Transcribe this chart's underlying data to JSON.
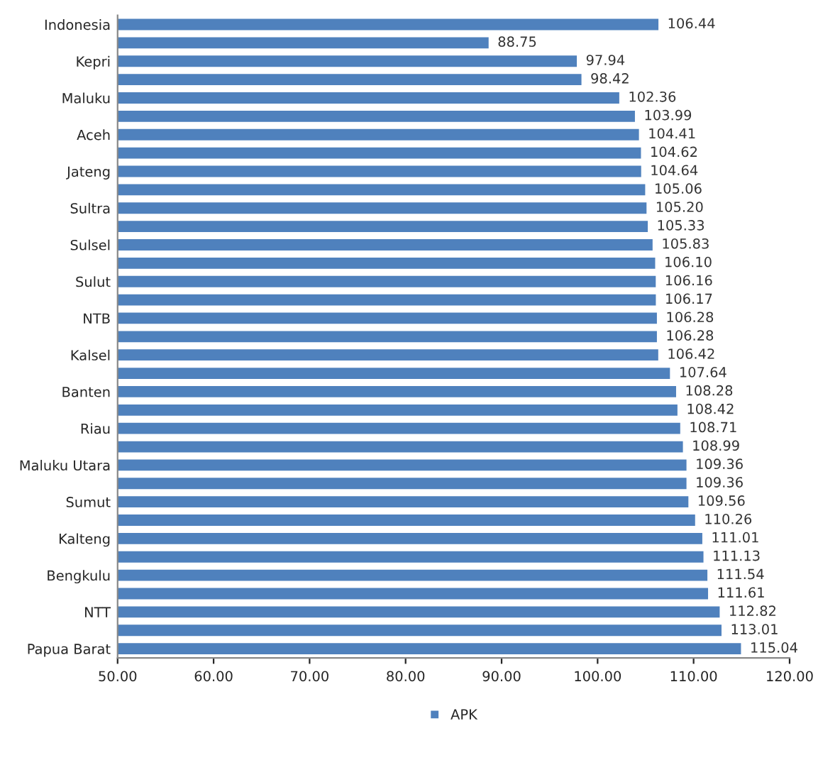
{
  "chart_data": {
    "type": "bar",
    "orientation": "horizontal",
    "categories": [
      "Indonesia",
      null,
      "Kepri",
      null,
      "Maluku",
      null,
      "Aceh",
      null,
      "Jateng",
      null,
      "Sultra",
      null,
      "Sulsel",
      null,
      "Sulut",
      null,
      "NTB",
      null,
      "Kalsel",
      null,
      "Banten",
      null,
      "Riau",
      null,
      "Maluku Utara",
      null,
      "Sumut",
      null,
      "Kalteng",
      null,
      "Bengkulu",
      null,
      "NTT",
      null,
      "Papua Barat"
    ],
    "series": [
      {
        "name": "APK",
        "color": "#4f81bd",
        "values": [
          106.44,
          88.75,
          97.94,
          98.42,
          102.36,
          103.99,
          104.41,
          104.62,
          104.64,
          105.06,
          105.2,
          105.33,
          105.83,
          106.1,
          106.16,
          106.17,
          106.28,
          106.28,
          106.42,
          107.64,
          108.28,
          108.42,
          108.71,
          108.99,
          109.36,
          109.36,
          109.56,
          110.26,
          111.01,
          111.13,
          111.54,
          111.61,
          112.82,
          113.01,
          115.04
        ],
        "value_labels": [
          "106.44",
          "88.75",
          "97.94",
          "98.42",
          "102.36",
          "103.99",
          "104.41",
          "104.62",
          "104.64",
          "105.06",
          "105.20",
          "105.33",
          "105.83",
          "106.10",
          "106.16",
          "106.17",
          "106.28",
          "106.28",
          "106.42",
          "107.64",
          "108.28",
          "108.42",
          "108.71",
          "108.99",
          "109.36",
          "109.36",
          "109.56",
          "110.26",
          "111.01",
          "111.13",
          "111.54",
          "111.61",
          "112.82",
          "113.01",
          "115.04"
        ]
      }
    ],
    "xlim": [
      50,
      120
    ],
    "xticks": [
      {
        "value": 50,
        "label": "50.00"
      },
      {
        "value": 60,
        "label": "60.00"
      },
      {
        "value": 70,
        "label": "70.00"
      },
      {
        "value": 80,
        "label": "80.00"
      },
      {
        "value": 90,
        "label": "90.00"
      },
      {
        "value": 100,
        "label": "100.00"
      },
      {
        "value": 110,
        "label": "110.00"
      },
      {
        "value": 120,
        "label": "120.00"
      }
    ],
    "legend": "bottom",
    "grid": false
  }
}
